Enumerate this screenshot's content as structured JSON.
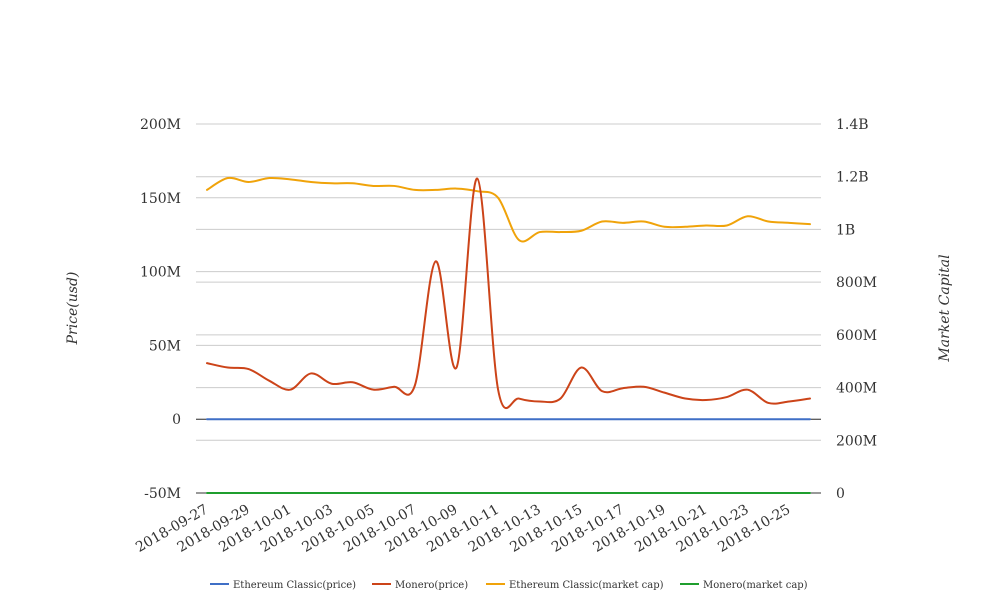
{
  "chart_data": {
    "type": "line",
    "left_axis": {
      "label": "Price(usd)",
      "ylim": [
        -50000000,
        200000000
      ],
      "ticks": [
        "-50M",
        "0",
        "50M",
        "100M",
        "150M",
        "200M"
      ]
    },
    "right_axis": {
      "label": "Market Capital",
      "ylim": [
        0,
        1400000000
      ],
      "ticks": [
        "0",
        "200M",
        "400M",
        "600M",
        "800M",
        "1B",
        "1.2B",
        "1.4B"
      ]
    },
    "x_tick_labels": [
      "2018-09-27",
      "2018-09-29",
      "2018-10-01",
      "2018-10-03",
      "2018-10-05",
      "2018-10-07",
      "2018-10-09",
      "2018-10-11",
      "2018-10-13",
      "2018-10-15",
      "2018-10-17",
      "2018-10-19",
      "2018-10-21",
      "2018-10-23",
      "2018-10-25"
    ],
    "x": [
      "2018-09-27",
      "2018-09-28",
      "2018-09-29",
      "2018-09-30",
      "2018-10-01",
      "2018-10-02",
      "2018-10-03",
      "2018-10-04",
      "2018-10-05",
      "2018-10-06",
      "2018-10-07",
      "2018-10-08",
      "2018-10-09",
      "2018-10-10",
      "2018-10-11",
      "2018-10-12",
      "2018-10-13",
      "2018-10-14",
      "2018-10-15",
      "2018-10-16",
      "2018-10-17",
      "2018-10-18",
      "2018-10-19",
      "2018-10-20",
      "2018-10-21",
      "2018-10-22",
      "2018-10-23",
      "2018-10-24",
      "2018-10-25",
      "2018-10-26"
    ],
    "series": [
      {
        "name": "Ethereum Classic(price)",
        "axis": "left",
        "color": "#3f6fc6",
        "values": [
          0,
          0,
          0,
          0,
          0,
          0,
          0,
          0,
          0,
          0,
          0,
          0,
          0,
          0,
          0,
          0,
          0,
          0,
          0,
          0,
          0,
          0,
          0,
          0,
          0,
          0,
          0,
          0,
          0,
          0
        ]
      },
      {
        "name": "Monero(price)",
        "axis": "left",
        "color": "#cc4419",
        "values": [
          38000000,
          35000000,
          34000000,
          26000000,
          20000000,
          31000000,
          24000000,
          25000000,
          20000000,
          22000000,
          23000000,
          107000000,
          35000000,
          163000000,
          20000000,
          14000000,
          12000000,
          14000000,
          35000000,
          19000000,
          21000000,
          22000000,
          18000000,
          14000000,
          13000000,
          15000000,
          20000000,
          11000000,
          12000000,
          14000000
        ]
      },
      {
        "name": "Ethereum Classic(market cap)",
        "axis": "right",
        "color": "#f0a30a",
        "values": [
          1150000000,
          1195000000,
          1180000000,
          1195000000,
          1190000000,
          1180000000,
          1175000000,
          1175000000,
          1165000000,
          1165000000,
          1150000000,
          1150000000,
          1155000000,
          1145000000,
          1120000000,
          960000000,
          990000000,
          990000000,
          995000000,
          1030000000,
          1025000000,
          1030000000,
          1010000000,
          1010000000,
          1015000000,
          1015000000,
          1050000000,
          1030000000,
          1025000000,
          1020000000
        ]
      },
      {
        "name": "Monero(market cap)",
        "axis": "right",
        "color": "#1f9e2e",
        "values": [
          0,
          0,
          0,
          0,
          0,
          0,
          0,
          0,
          0,
          0,
          0,
          0,
          0,
          0,
          0,
          0,
          0,
          0,
          0,
          0,
          0,
          0,
          0,
          0,
          0,
          0,
          0,
          0,
          0,
          0
        ]
      }
    ],
    "grid": true,
    "legend_position": "bottom"
  }
}
